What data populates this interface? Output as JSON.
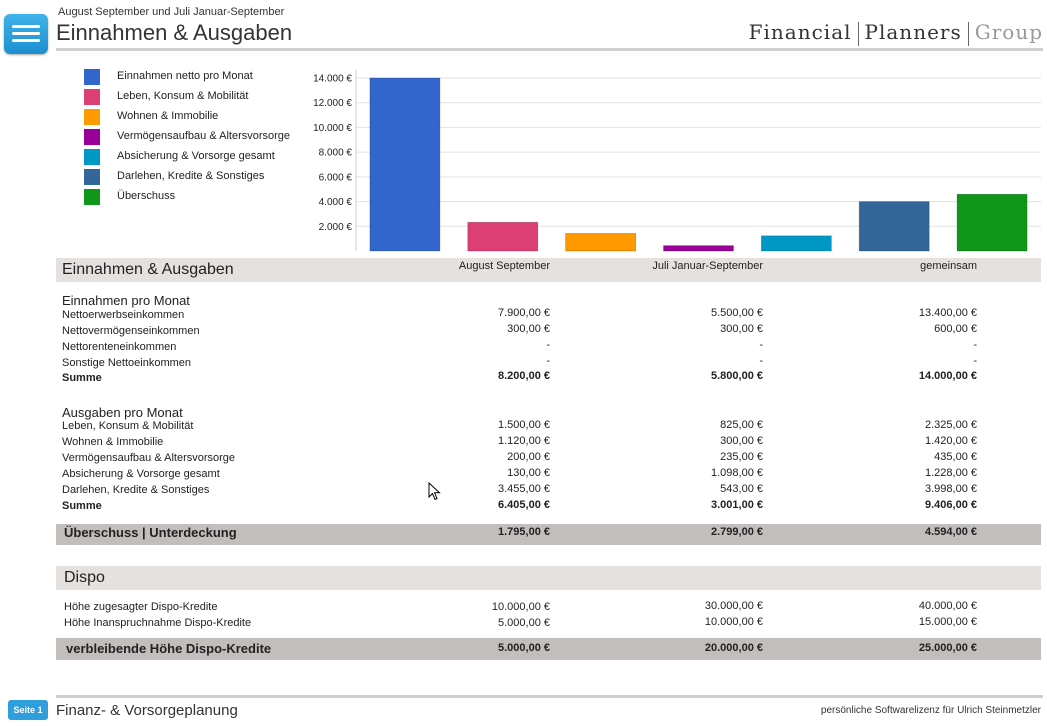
{
  "header": {
    "subtitle": "August September und Juli Januar-September",
    "title": "Einnahmen & Ausgaben",
    "brand": [
      "Financial",
      "Planners",
      "Group"
    ]
  },
  "legend": [
    {
      "label": "Einnahmen netto pro Monat",
      "color": "#3366cc"
    },
    {
      "label": "Leben, Konsum & Mobilität",
      "color": "#dc3f74"
    },
    {
      "label": "Wohnen & Immobilie",
      "color": "#ff9900"
    },
    {
      "label": "Vermögensaufbau & Altersvorsorge",
      "color": "#990099"
    },
    {
      "label": "Absicherung & Vorsorge gesamt",
      "color": "#0099c6"
    },
    {
      "label": "Darlehen, Kredite & Sonstiges",
      "color": "#336699"
    },
    {
      "label": "Überschuss",
      "color": "#109618"
    }
  ],
  "chart_data": {
    "type": "bar",
    "categories": [
      "Einnahmen netto pro Monat",
      "Leben, Konsum & Mobilität",
      "Wohnen & Immobilie",
      "Vermögensaufbau & Altersvorsorge",
      "Absicherung & Vorsorge gesamt",
      "Darlehen, Kredite & Sonstiges",
      "Überschuss"
    ],
    "values": [
      14000,
      2325,
      1420,
      435,
      1228,
      3998,
      4594
    ],
    "colors": [
      "#3366cc",
      "#dc3f74",
      "#ff9900",
      "#990099",
      "#0099c6",
      "#336699",
      "#109618"
    ],
    "ylim": [
      0,
      14000
    ],
    "yticks": [
      2000,
      4000,
      6000,
      8000,
      10000,
      12000,
      14000
    ],
    "ytick_labels": [
      "2.000 €",
      "4.000 €",
      "6.000 €",
      "8.000 €",
      "10.000 €",
      "12.000 €",
      "14.000 €"
    ],
    "grid": true,
    "legend": "left"
  },
  "table": {
    "title": "Einnahmen & Ausgaben",
    "columns": [
      "August September",
      "Juli Januar-September",
      "gemeinsam"
    ],
    "income": {
      "heading": "Einnahmen pro Monat",
      "rows": [
        {
          "label": "Nettoerwerbseinkommen",
          "values": [
            "7.900,00 €",
            "5.500,00 €",
            "13.400,00 €"
          ]
        },
        {
          "label": "Nettovermögenseinkommen",
          "values": [
            "300,00 €",
            "300,00 €",
            "600,00 €"
          ]
        },
        {
          "label": "Nettorenteneinkommen",
          "values": [
            "-",
            "-",
            "-"
          ]
        },
        {
          "label": "Sonstige Nettoeinkommen",
          "values": [
            "-",
            "-",
            "-"
          ]
        }
      ],
      "sum": {
        "label": "Summe",
        "values": [
          "8.200,00 €",
          "5.800,00 €",
          "14.000,00 €"
        ]
      }
    },
    "expenses": {
      "heading": "Ausgaben pro Monat",
      "rows": [
        {
          "label": "Leben, Konsum & Mobilität",
          "values": [
            "1.500,00 €",
            "825,00 €",
            "2.325,00 €"
          ]
        },
        {
          "label": "Wohnen & Immobilie",
          "values": [
            "1.120,00 €",
            "300,00 €",
            "1.420,00 €"
          ]
        },
        {
          "label": "Vermögensaufbau & Altersvorsorge",
          "values": [
            "200,00 €",
            "235,00 €",
            "435,00 €"
          ]
        },
        {
          "label": "Absicherung & Vorsorge gesamt",
          "values": [
            "130,00 €",
            "1.098,00 €",
            "1.228,00 €"
          ]
        },
        {
          "label": "Darlehen, Kredite & Sonstiges",
          "values": [
            "3.455,00 €",
            "543,00 €",
            "3.998,00 €"
          ]
        }
      ],
      "sum": {
        "label": "Summe",
        "values": [
          "6.405,00 €",
          "3.001,00 €",
          "9.406,00 €"
        ]
      }
    },
    "surplus": {
      "label": "Überschuss | Unterdeckung",
      "values": [
        "1.795,00 €",
        "2.799,00 €",
        "4.594,00 €"
      ]
    }
  },
  "dispo": {
    "title": "Dispo",
    "rows": [
      {
        "label": "Höhe zugesagter Dispo-Kredite",
        "values": [
          "10.000,00 €",
          "30.000,00 €",
          "40.000,00 €"
        ]
      },
      {
        "label": "Höhe Inanspruchnahme Dispo-Kredite",
        "values": [
          "5.000,00 €",
          "10.000,00 €",
          "15.000,00 €"
        ]
      }
    ],
    "remaining": {
      "label": "verbleibende Höhe Dispo-Kredite",
      "values": [
        "5.000,00 €",
        "20.000,00 €",
        "25.000,00 €"
      ]
    }
  },
  "footer": {
    "page_badge": "Seite 1",
    "title": "Finanz- & Vorsorgeplanung",
    "license": "persönliche Softwarelizenz für Ulrich Steinmetzler"
  }
}
